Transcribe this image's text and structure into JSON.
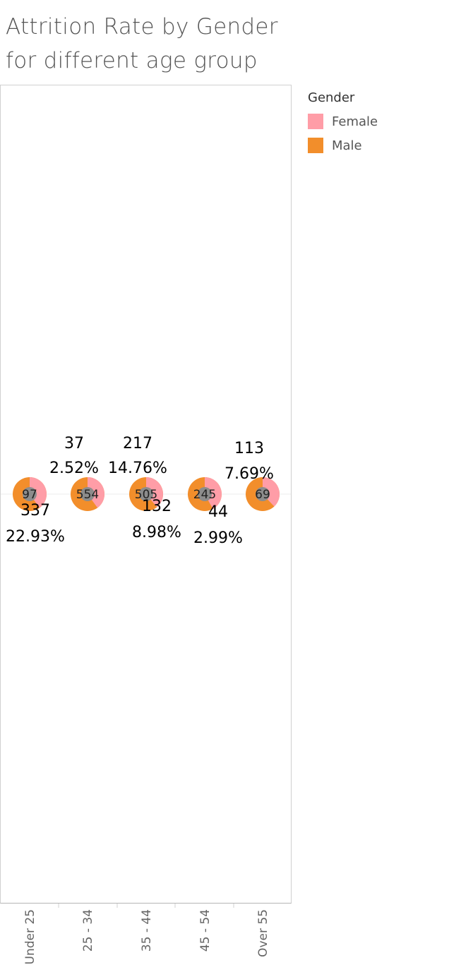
{
  "title_lines": [
    "Attrition Rate by Gender",
    "for different age group"
  ],
  "legend": {
    "title": "Gender",
    "items": [
      {
        "label": "Female",
        "color": "#ff9da7"
      },
      {
        "label": "Male",
        "color": "#f28e2b"
      }
    ]
  },
  "chart_data": {
    "type": "pie",
    "title": "Attrition Rate by Gender for different age group",
    "categories": [
      "Under 25",
      "25 - 34",
      "35 - 44",
      "45 - 54",
      "Over 55"
    ],
    "series": [
      {
        "name": "Female"
      },
      {
        "name": "Male"
      }
    ],
    "colors": {
      "Female": "#ff9da7",
      "Male": "#f28e2b",
      "center": "#8c8c8c"
    },
    "groups": [
      {
        "category": "Under 25",
        "center_label": "97",
        "female_share": 0.4,
        "count_upper": "",
        "pct_upper": "",
        "count_lower": "337",
        "pct_lower": "22.93%"
      },
      {
        "category": "25 - 34",
        "center_label": "554",
        "female_share": 0.4,
        "count_upper": "37",
        "pct_upper": "2.52%",
        "count_lower": "",
        "pct_lower": ""
      },
      {
        "category": "35 - 44",
        "center_label": "505",
        "female_share": 0.39,
        "count_upper": "217",
        "pct_upper": "14.76%",
        "count_lower": "132",
        "pct_lower": "8.98%"
      },
      {
        "category": "45 - 54",
        "center_label": "245",
        "female_share": 0.42,
        "count_upper": "",
        "pct_upper": "",
        "count_lower": "44",
        "pct_lower": "2.99%"
      },
      {
        "category": "Over 55",
        "center_label": "69",
        "female_share": 0.38,
        "count_upper": "113",
        "pct_upper": "7.69%",
        "count_lower": "",
        "pct_lower": ""
      }
    ],
    "grid": false,
    "legend_position": "top-right"
  }
}
